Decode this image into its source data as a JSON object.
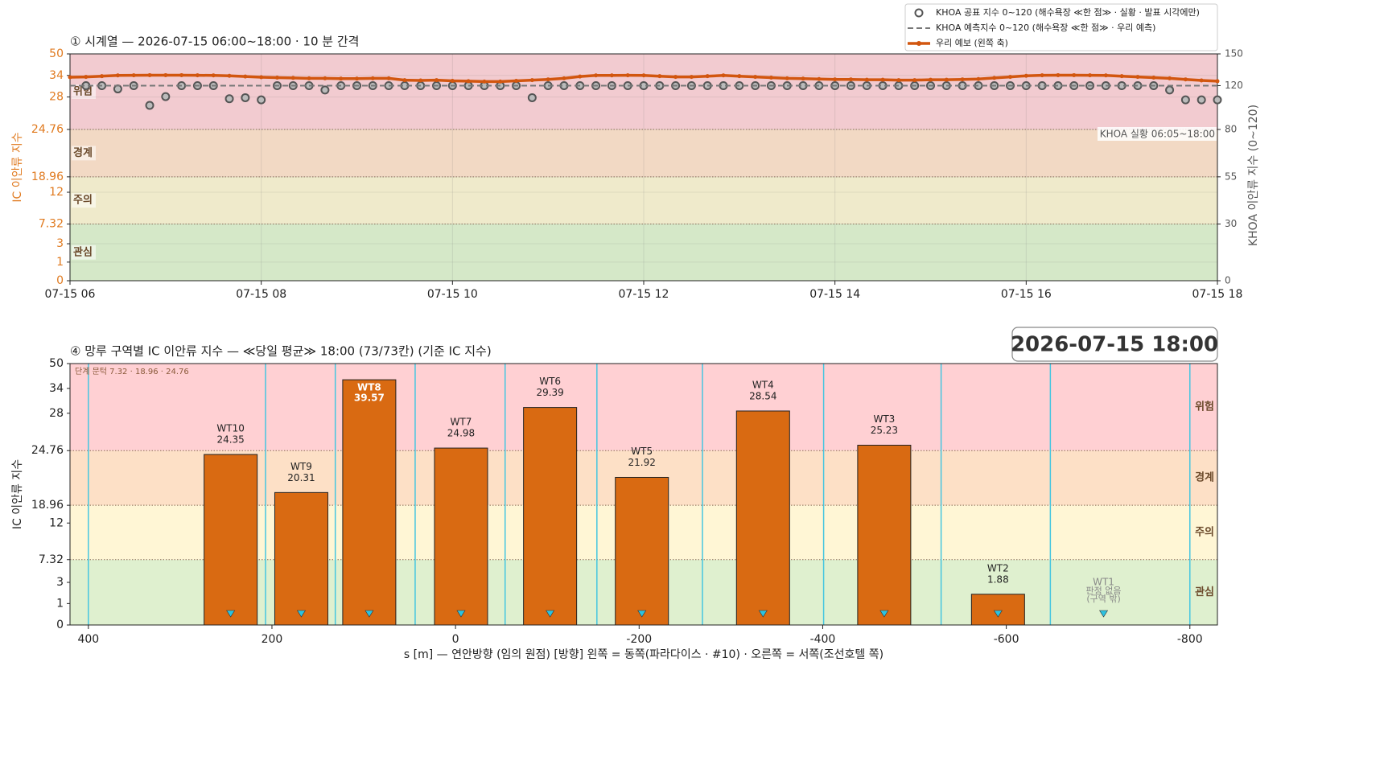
{
  "chart_data": [
    {
      "type": "line",
      "title": "① 시계열 — 2026-07-15 06:00~18:00 · 10 분 간격",
      "ylabel": "IC 이안류 지수",
      "y2label": "KHOA 이안류 지수 (0~120)",
      "x": [
        "07-15 06:00",
        "07-15 06:10",
        "07-15 06:20",
        "07-15 06:30",
        "07-15 06:40",
        "07-15 06:50",
        "07-15 07:00",
        "07-15 07:10",
        "07-15 07:20",
        "07-15 07:30",
        "07-15 07:40",
        "07-15 07:50",
        "07-15 08:00",
        "07-15 08:10",
        "07-15 08:20",
        "07-15 08:30",
        "07-15 08:40",
        "07-15 08:50",
        "07-15 09:00",
        "07-15 09:10",
        "07-15 09:20",
        "07-15 09:30",
        "07-15 09:40",
        "07-15 09:50",
        "07-15 10:00",
        "07-15 10:10",
        "07-15 10:20",
        "07-15 10:30",
        "07-15 10:40",
        "07-15 10:50",
        "07-15 11:00",
        "07-15 11:10",
        "07-15 11:20",
        "07-15 11:30",
        "07-15 11:40",
        "07-15 11:50",
        "07-15 12:00",
        "07-15 12:10",
        "07-15 12:20",
        "07-15 12:30",
        "07-15 12:40",
        "07-15 12:50",
        "07-15 13:00",
        "07-15 13:10",
        "07-15 13:20",
        "07-15 13:30",
        "07-15 13:40",
        "07-15 13:50",
        "07-15 14:00",
        "07-15 14:10",
        "07-15 14:20",
        "07-15 14:30",
        "07-15 14:40",
        "07-15 14:50",
        "07-15 15:00",
        "07-15 15:10",
        "07-15 15:20",
        "07-15 15:30",
        "07-15 15:40",
        "07-15 15:50",
        "07-15 16:00",
        "07-15 16:10",
        "07-15 16:20",
        "07-15 16:30",
        "07-15 16:40",
        "07-15 16:50",
        "07-15 17:00",
        "07-15 17:10",
        "07-15 17:20",
        "07-15 17:30",
        "07-15 17:40",
        "07-15 17:50",
        "07-15 18:00"
      ],
      "xticks": [
        {
          "value": "07-15 06:00",
          "label": "07-15 06"
        },
        {
          "value": "07-15 08:00",
          "label": "07-15 08"
        },
        {
          "value": "07-15 10:00",
          "label": "07-15 10"
        },
        {
          "value": "07-15 12:00",
          "label": "07-15 12"
        },
        {
          "value": "07-15 14:00",
          "label": "07-15 14"
        },
        {
          "value": "07-15 16:00",
          "label": "07-15 16"
        },
        {
          "value": "07-15 18:00",
          "label": "07-15 18"
        }
      ],
      "ylim": [
        0,
        50
      ],
      "yticks": [
        0,
        1,
        3,
        7.32,
        12,
        18.96,
        24.76,
        28,
        34,
        50
      ],
      "y2lim": [
        0,
        150
      ],
      "y2ticks": [
        0,
        30,
        55,
        80,
        120,
        150
      ],
      "bands": [
        {
          "name": "관심",
          "from": 0,
          "to": 7.32,
          "color": "#d5e8c8"
        },
        {
          "name": "주의",
          "from": 7.32,
          "to": 18.96,
          "color": "#efeacb"
        },
        {
          "name": "경계",
          "from": 18.96,
          "to": 24.76,
          "color": "#f2d9c4"
        },
        {
          "name": "위험",
          "from": 24.76,
          "to": 50,
          "color": "#f2cbd0"
        }
      ],
      "series": [
        {
          "name": "KHOA 공표 지수 0~120 (해수욕장 ≪한 점≫ · 실황 · 발표 시각에만)",
          "color": "#555555",
          "style": "markers",
          "axis": "y2",
          "values": [
            null,
            120,
            120,
            117,
            120,
            102,
            110,
            120,
            120,
            120,
            108,
            109,
            107,
            120,
            120,
            120,
            116,
            120,
            120,
            120,
            120,
            120,
            120,
            120,
            120,
            120,
            120,
            120,
            120,
            109,
            120,
            120,
            120,
            120,
            120,
            120,
            120,
            120,
            120,
            120,
            120,
            120,
            120,
            120,
            120,
            120,
            120,
            120,
            120,
            120,
            120,
            120,
            120,
            120,
            120,
            120,
            120,
            120,
            120,
            120,
            120,
            120,
            120,
            120,
            120,
            120,
            120,
            120,
            120,
            116,
            107,
            107,
            107
          ]
        },
        {
          "name": "KHOA 예측지수 0~120 (해수욕장 ≪한 점≫ · 우리 예측)",
          "color": "#777777",
          "style": "dashed",
          "axis": "y2",
          "values": [
            120,
            120,
            120,
            120,
            120,
            120,
            120,
            120,
            120,
            120,
            120,
            120,
            120,
            120,
            120,
            120,
            120,
            120,
            120,
            120,
            120,
            120,
            120,
            120,
            120,
            120,
            120,
            120,
            120,
            120,
            120,
            120,
            120,
            120,
            120,
            120,
            120,
            120,
            120,
            120,
            120,
            120,
            120,
            120,
            120,
            120,
            120,
            120,
            120,
            120,
            120,
            120,
            120,
            120,
            120,
            120,
            120,
            120,
            120,
            120,
            120,
            120,
            120,
            120,
            120,
            120,
            120,
            120,
            120,
            120,
            120,
            120,
            120
          ]
        },
        {
          "name": "우리 예보 (왼쪽 축)",
          "color": "#d2560f",
          "style": "line-markers",
          "values": [
            33.5,
            33.6,
            33.8,
            34.0,
            34.1,
            34.2,
            34.2,
            34.2,
            34.1,
            34.0,
            33.9,
            33.7,
            33.5,
            33.4,
            33.3,
            33.2,
            33.2,
            33.1,
            33.1,
            33.2,
            33.2,
            32.7,
            32.6,
            32.7,
            32.5,
            32.4,
            32.3,
            32.3,
            32.5,
            32.7,
            32.9,
            33.2,
            33.7,
            34.0,
            34.0,
            34.1,
            34.0,
            33.8,
            33.6,
            33.6,
            33.8,
            34.0,
            33.8,
            33.6,
            33.4,
            33.2,
            33.1,
            33.0,
            32.9,
            32.9,
            32.8,
            32.8,
            32.7,
            32.7,
            32.8,
            32.8,
            32.9,
            33.0,
            33.3,
            33.6,
            33.9,
            34.1,
            34.2,
            34.2,
            34.1,
            34.0,
            33.8,
            33.6,
            33.4,
            33.2,
            32.9,
            32.6,
            32.4
          ]
        }
      ],
      "annotation": "KHOA 실황 06:05~18:00",
      "grid": true,
      "legend": "upper right"
    },
    {
      "type": "bar",
      "title": "④ 망루 구역별 IC 이안류 지수 — ≪당일 평균≫ 18:00  (73/73칸)   (기준 IC 지수)",
      "xlabel": "s [m] — 연안방향 (임의 원점)     [방향] 왼쪽 = 동쪽(파라다이스 · #10) · 오른쪽 = 서쪽(조선호텔 쪽)",
      "ylabel": "IC 이안류 지수",
      "timestamp": "2026-07-15  18:00",
      "threshold_note": "단계 문턱 7.32 · 18.96 · 24.76",
      "categories": [
        "WT10",
        "WT9",
        "WT8",
        "WT7",
        "WT6",
        "WT5",
        "WT4",
        "WT3",
        "WT2",
        "WT1"
      ],
      "x": [
        245,
        168,
        94,
        -6,
        -103,
        -203,
        -335,
        -467,
        -591,
        -706
      ],
      "values": [
        24.35,
        20.31,
        39.57,
        24.98,
        29.39,
        21.92,
        28.54,
        25.23,
        1.88,
        null
      ],
      "missing_label": [
        "판정 없음",
        "(구역 밖)"
      ],
      "zone_boundaries": [
        400,
        207,
        131,
        44,
        -54,
        -154,
        -269,
        -401,
        -529,
        -648,
        -800
      ],
      "color": "#d96a12",
      "xlim": [
        420,
        -830
      ],
      "xticks": [
        400,
        200,
        0,
        -200,
        -400,
        -600,
        -800
      ],
      "ylim": [
        0,
        50
      ],
      "yticks": [
        0,
        1,
        3,
        7.32,
        12,
        18.96,
        24.76,
        28,
        34,
        50
      ],
      "bands": [
        {
          "name": "관심",
          "from": 0,
          "to": 7.32,
          "color": "#dff0cf"
        },
        {
          "name": "주의",
          "from": 7.32,
          "to": 18.96,
          "color": "#fff6d5"
        },
        {
          "name": "경계",
          "from": 18.96,
          "to": 24.76,
          "color": "#fde0c6"
        },
        {
          "name": "위험",
          "from": 24.76,
          "to": 50,
          "color": "#ffd0d3"
        }
      ]
    }
  ]
}
